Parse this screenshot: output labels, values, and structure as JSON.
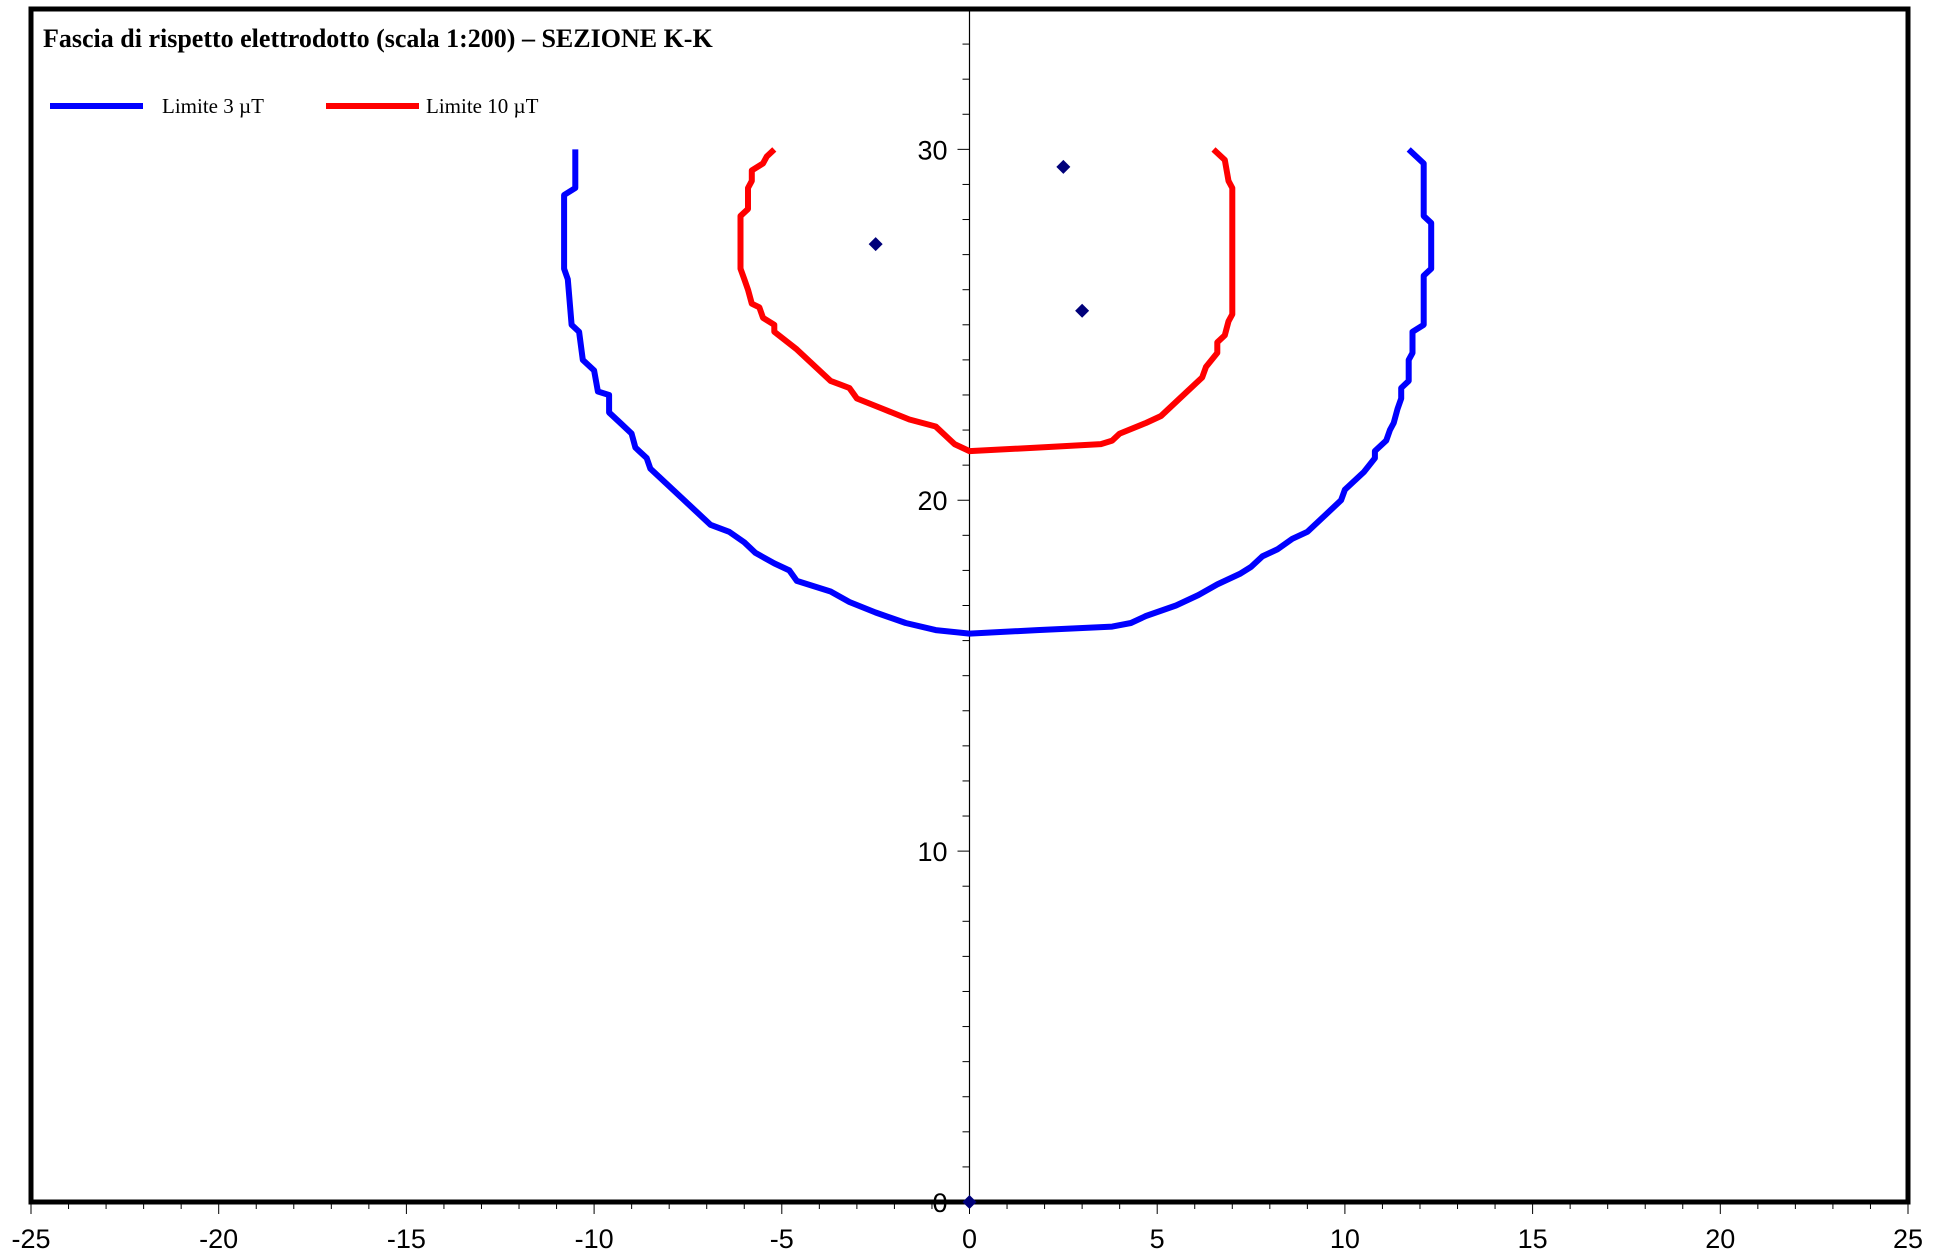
{
  "chart_data": {
    "type": "line",
    "title": "Fascia di rispetto elettrodotto (scala 1:200) – SEZIONE K-K",
    "xlabel": "",
    "ylabel": "",
    "xlim": [
      -25,
      25
    ],
    "ylim": [
      0,
      34
    ],
    "x_ticks": [
      -25,
      -20,
      -15,
      -10,
      -5,
      0,
      5,
      10,
      15,
      20,
      25
    ],
    "y_ticks": [
      0,
      10,
      20,
      30
    ],
    "grid": false,
    "legend_position": "top-left",
    "series": [
      {
        "name": "Limite 3 µT",
        "color": "#0000ff",
        "points": [
          [
            -10.5,
            30.0
          ],
          [
            -10.5,
            28.9
          ],
          [
            -10.8,
            28.7
          ],
          [
            -10.8,
            26.6
          ],
          [
            -10.7,
            26.3
          ],
          [
            -10.6,
            25.0
          ],
          [
            -10.4,
            24.8
          ],
          [
            -10.3,
            24.0
          ],
          [
            -10.0,
            23.7
          ],
          [
            -9.9,
            23.1
          ],
          [
            -9.6,
            23.0
          ],
          [
            -9.6,
            22.5
          ],
          [
            -9.3,
            22.2
          ],
          [
            -9.0,
            21.9
          ],
          [
            -8.9,
            21.5
          ],
          [
            -8.6,
            21.2
          ],
          [
            -8.5,
            20.9
          ],
          [
            -7.7,
            20.1
          ],
          [
            -6.9,
            19.3
          ],
          [
            -6.4,
            19.1
          ],
          [
            -6.0,
            18.8
          ],
          [
            -5.7,
            18.5
          ],
          [
            -5.2,
            18.2
          ],
          [
            -4.8,
            18.0
          ],
          [
            -4.6,
            17.7
          ],
          [
            -3.7,
            17.4
          ],
          [
            -3.2,
            17.1
          ],
          [
            -2.5,
            16.8
          ],
          [
            -1.7,
            16.5
          ],
          [
            -0.9,
            16.3
          ],
          [
            0.0,
            16.2
          ],
          [
            1.8,
            16.3
          ],
          [
            3.8,
            16.4
          ],
          [
            4.3,
            16.5
          ],
          [
            4.7,
            16.7
          ],
          [
            5.5,
            17.0
          ],
          [
            6.1,
            17.3
          ],
          [
            6.6,
            17.6
          ],
          [
            7.2,
            17.9
          ],
          [
            7.5,
            18.1
          ],
          [
            7.8,
            18.4
          ],
          [
            8.2,
            18.6
          ],
          [
            8.6,
            18.9
          ],
          [
            9.0,
            19.1
          ],
          [
            9.5,
            19.6
          ],
          [
            9.9,
            20.0
          ],
          [
            10.0,
            20.3
          ],
          [
            10.5,
            20.8
          ],
          [
            10.8,
            21.2
          ],
          [
            10.8,
            21.4
          ],
          [
            11.1,
            21.7
          ],
          [
            11.2,
            22.0
          ],
          [
            11.3,
            22.2
          ],
          [
            11.4,
            22.6
          ],
          [
            11.5,
            22.9
          ],
          [
            11.5,
            23.2
          ],
          [
            11.7,
            23.4
          ],
          [
            11.7,
            24.0
          ],
          [
            11.8,
            24.2
          ],
          [
            11.8,
            24.8
          ],
          [
            12.1,
            25.0
          ],
          [
            12.1,
            26.4
          ],
          [
            12.3,
            26.6
          ],
          [
            12.3,
            27.9
          ],
          [
            12.1,
            28.1
          ],
          [
            12.1,
            29.6
          ],
          [
            11.9,
            29.8
          ],
          [
            11.7,
            30.0
          ]
        ]
      },
      {
        "name": "Limite 10 µT",
        "color": "#ff0000",
        "points": [
          [
            -5.2,
            30.0
          ],
          [
            -5.4,
            29.8
          ],
          [
            -5.5,
            29.6
          ],
          [
            -5.8,
            29.4
          ],
          [
            -5.8,
            29.1
          ],
          [
            -5.9,
            28.9
          ],
          [
            -5.9,
            28.3
          ],
          [
            -6.1,
            28.1
          ],
          [
            -6.1,
            26.6
          ],
          [
            -6.0,
            26.3
          ],
          [
            -5.9,
            26.0
          ],
          [
            -5.8,
            25.6
          ],
          [
            -5.6,
            25.5
          ],
          [
            -5.5,
            25.2
          ],
          [
            -5.2,
            25.0
          ],
          [
            -5.2,
            24.8
          ],
          [
            -4.6,
            24.3
          ],
          [
            -3.7,
            23.4
          ],
          [
            -3.2,
            23.2
          ],
          [
            -3.0,
            22.9
          ],
          [
            -2.3,
            22.6
          ],
          [
            -1.6,
            22.3
          ],
          [
            -0.9,
            22.1
          ],
          [
            -0.6,
            21.8
          ],
          [
            -0.4,
            21.6
          ],
          [
            0.0,
            21.4
          ],
          [
            1.8,
            21.5
          ],
          [
            3.5,
            21.6
          ],
          [
            3.8,
            21.7
          ],
          [
            4.0,
            21.9
          ],
          [
            4.7,
            22.2
          ],
          [
            5.1,
            22.4
          ],
          [
            5.4,
            22.7
          ],
          [
            6.2,
            23.5
          ],
          [
            6.3,
            23.8
          ],
          [
            6.6,
            24.2
          ],
          [
            6.6,
            24.5
          ],
          [
            6.8,
            24.7
          ],
          [
            6.9,
            25.1
          ],
          [
            7.0,
            25.3
          ],
          [
            7.0,
            28.9
          ],
          [
            6.9,
            29.1
          ],
          [
            6.8,
            29.7
          ],
          [
            6.5,
            30.0
          ]
        ]
      },
      {
        "name": "",
        "type": "scatter",
        "color": "#00007a",
        "points": [
          [
            0.0,
            0.0
          ],
          [
            -2.5,
            27.3
          ],
          [
            2.5,
            29.5
          ],
          [
            3.0,
            25.4
          ]
        ]
      }
    ]
  }
}
